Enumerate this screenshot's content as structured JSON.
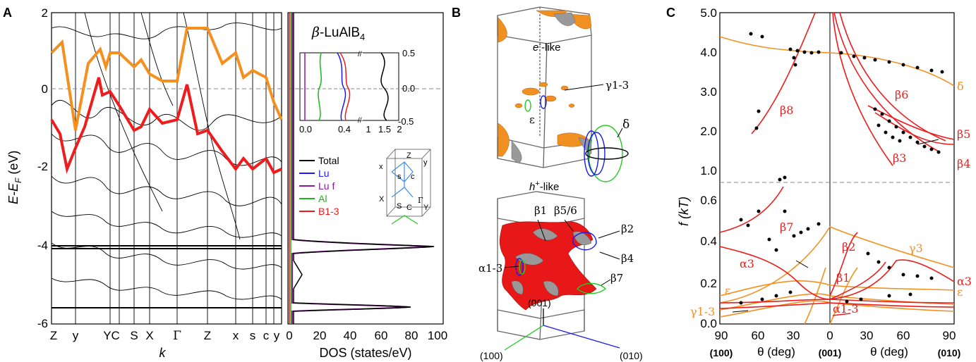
{
  "panels": {
    "a": {
      "letter": "A",
      "y_label": "E-E",
      "y_label_sub": "F",
      "y_label_unit": " (eV)",
      "x_label": "k",
      "y_ticks": [
        "2",
        "0",
        "-2",
        "-4",
        "-6"
      ],
      "k_labels": [
        "Z",
        "y",
        "YC",
        "S",
        "X",
        "Γ",
        "Z",
        "x",
        "s",
        "c",
        "y"
      ],
      "dos_xlabel": "DOS (states/eV)",
      "dos_ticks": [
        "0",
        "20",
        "40",
        "60",
        "80",
        "100"
      ],
      "material_prefix": "β",
      "material": "-LuAlB",
      "material_sub": "4",
      "inset_ticks_x": [
        "0.0",
        "0.4",
        "1",
        "1.5",
        "2"
      ],
      "inset_ticks_y": [
        "0.5",
        "0.0",
        "-0.5"
      ],
      "legend": [
        {
          "label": "Total",
          "color": "#000000"
        },
        {
          "label": "Lu",
          "color": "#1a1aee"
        },
        {
          "label": "Lu f",
          "color": "#8b1a9b"
        },
        {
          "label": "Al",
          "color": "#1ab81a"
        },
        {
          "label": "B1-3",
          "color": "#ee1a1a"
        }
      ],
      "bz_labels": [
        "Z",
        "y",
        "x",
        "s",
        "c",
        "X",
        "S",
        "C",
        "Γ",
        "Y"
      ]
    },
    "b": {
      "letter": "B",
      "electron_label": "e",
      "electron_suffix": "-like",
      "hole_label": "h",
      "hole_suffix": "-like",
      "labels": [
        "γ1-3",
        "ε",
        "δ",
        "β1",
        "β5/6",
        "β2",
        "β4",
        "β7",
        "α1-3"
      ],
      "axis_labels": [
        "(001)",
        "(100)",
        "(010)"
      ]
    },
    "c": {
      "letter": "C",
      "y_label": "f (kT)",
      "y_ticks_upper": [
        "5.0",
        "4.0",
        "3.0",
        "2.0",
        "1.0"
      ],
      "y_ticks_lower": [
        "0.6",
        "0.4",
        "0.2",
        "0.0"
      ],
      "x_ticks": [
        "90",
        "60",
        "30",
        "0",
        "30",
        "60",
        "90"
      ],
      "x_label": "θ (deg)",
      "directions": [
        "(100)",
        "(001)",
        "(010)"
      ],
      "branch_labels": [
        "δ",
        "β8",
        "β6",
        "β5",
        "β3",
        "β4",
        "β7",
        "γ3",
        "β2",
        "α3",
        "α3",
        "ε",
        "ε",
        "β1",
        "α1-3",
        "γ1-3"
      ]
    }
  },
  "colors": {
    "orange": "#f5901e",
    "red": "#ee1c1c",
    "blue": "#1a1aee",
    "green": "#22cc22",
    "purple": "#8b1a9b",
    "grey": "#808080"
  }
}
